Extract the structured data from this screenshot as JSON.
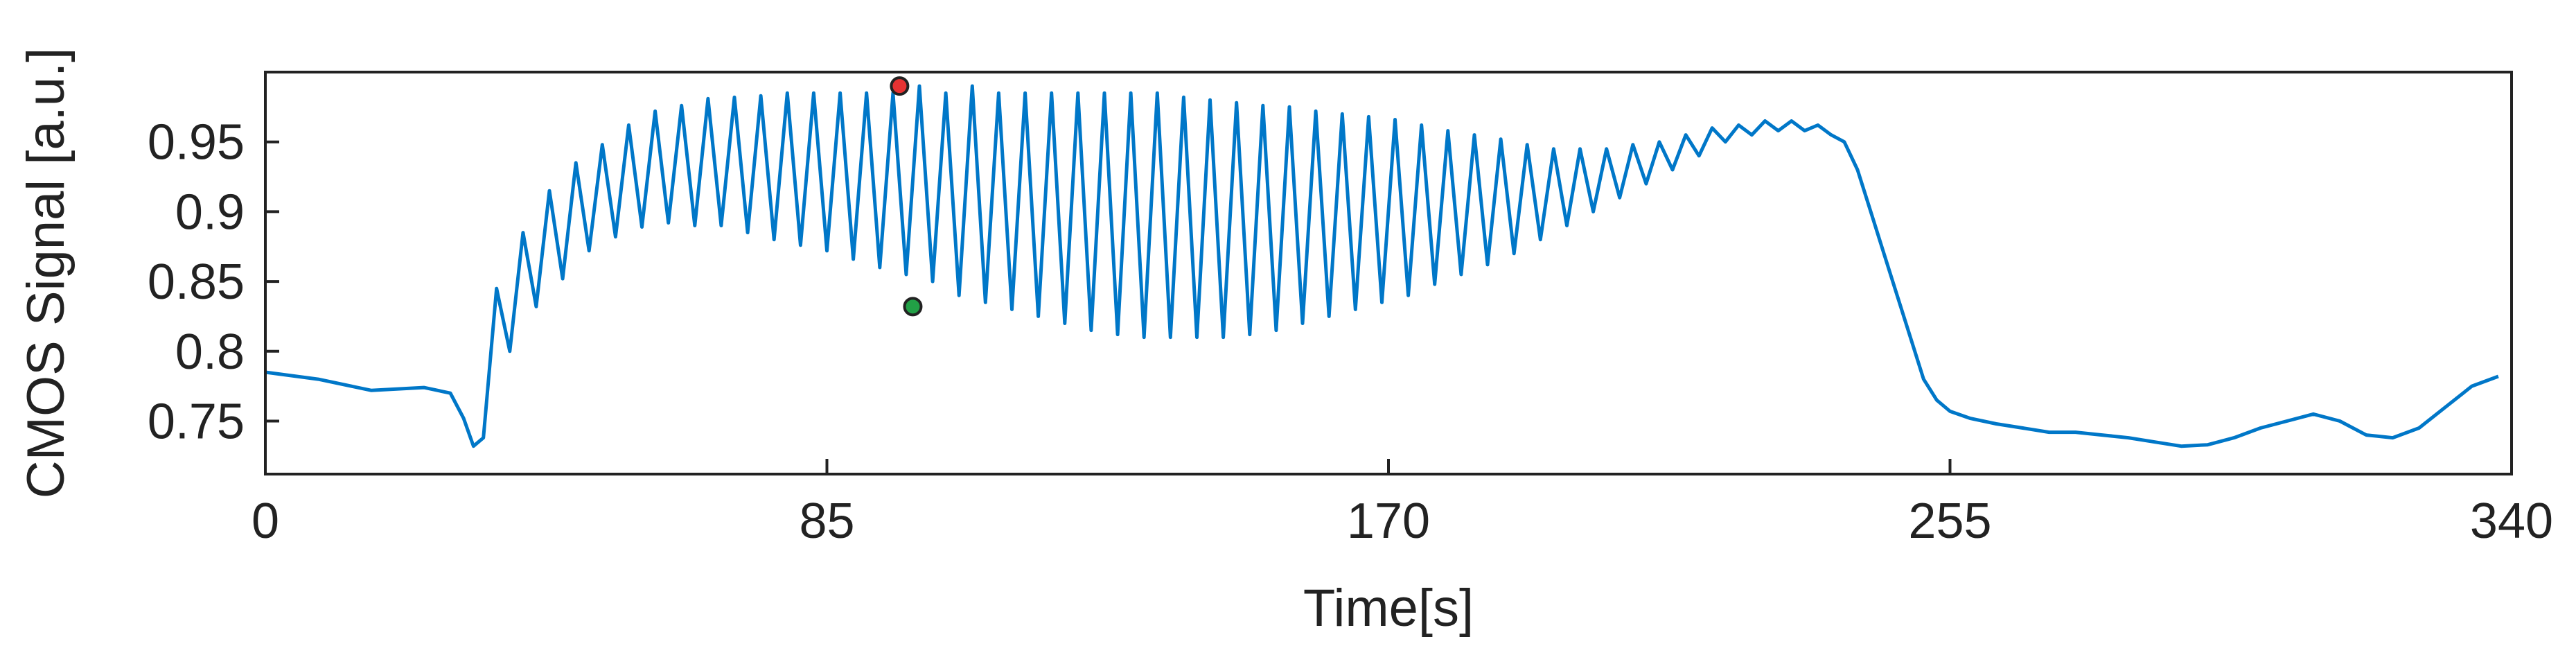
{
  "chart_data": {
    "type": "line",
    "title": "",
    "xlabel": "Time[s]",
    "ylabel": "CMOS Signal [a.u.]",
    "xlim": [
      0,
      340
    ],
    "ylim": [
      0.712,
      1.0
    ],
    "xticks": [
      0,
      85,
      170,
      255,
      340
    ],
    "yticks": [
      0.75,
      0.8,
      0.85,
      0.9,
      0.95
    ],
    "ytick_labels": [
      "0.75",
      "0.8",
      "0.85",
      "0.9",
      "0.95"
    ],
    "grid": false,
    "legend": "none",
    "series": [
      {
        "color": "#0077c8",
        "x": [
          0,
          8,
          16,
          24,
          28,
          30,
          31.5,
          33,
          35,
          37,
          39,
          41,
          43,
          45,
          47,
          49,
          51,
          53,
          55,
          57,
          59,
          61,
          63,
          65,
          67,
          69,
          71,
          73,
          75,
          77,
          79,
          81,
          83,
          85,
          87,
          89,
          91,
          93,
          95,
          97,
          99,
          101,
          103,
          105,
          107,
          109,
          111,
          113,
          115,
          117,
          119,
          121,
          123,
          125,
          127,
          129,
          131,
          133,
          135,
          137,
          139,
          141,
          143,
          145,
          147,
          149,
          151,
          153,
          155,
          157,
          159,
          161,
          163,
          165,
          167,
          169,
          171,
          173,
          175,
          177,
          179,
          181,
          183,
          185,
          187,
          189,
          191,
          193,
          195,
          197,
          199,
          201,
          203,
          205,
          207,
          209,
          211,
          213,
          215,
          217,
          219,
          221,
          223,
          225,
          227,
          229,
          231,
          233,
          235,
          237,
          239,
          241,
          243,
          245,
          247,
          249,
          251,
          253,
          255,
          258,
          262,
          266,
          270,
          274,
          278,
          282,
          286,
          290,
          294,
          298,
          302,
          306,
          310,
          314,
          318,
          322,
          326,
          330,
          334,
          338
        ],
        "y": [
          0.785,
          0.78,
          0.772,
          0.774,
          0.77,
          0.752,
          0.732,
          0.738,
          0.845,
          0.8,
          0.885,
          0.832,
          0.915,
          0.852,
          0.935,
          0.872,
          0.948,
          0.882,
          0.962,
          0.889,
          0.972,
          0.892,
          0.976,
          0.89,
          0.981,
          0.89,
          0.982,
          0.885,
          0.983,
          0.88,
          0.985,
          0.876,
          0.985,
          0.872,
          0.985,
          0.866,
          0.985,
          0.86,
          0.985,
          0.855,
          0.99,
          0.85,
          0.985,
          0.84,
          0.99,
          0.835,
          0.985,
          0.83,
          0.985,
          0.825,
          0.985,
          0.82,
          0.985,
          0.815,
          0.985,
          0.812,
          0.985,
          0.81,
          0.985,
          0.81,
          0.982,
          0.81,
          0.98,
          0.81,
          0.978,
          0.812,
          0.976,
          0.815,
          0.975,
          0.82,
          0.972,
          0.825,
          0.97,
          0.83,
          0.968,
          0.835,
          0.966,
          0.84,
          0.962,
          0.848,
          0.958,
          0.855,
          0.955,
          0.862,
          0.952,
          0.87,
          0.948,
          0.88,
          0.945,
          0.89,
          0.945,
          0.9,
          0.945,
          0.91,
          0.948,
          0.92,
          0.95,
          0.93,
          0.955,
          0.94,
          0.96,
          0.95,
          0.962,
          0.955,
          0.965,
          0.958,
          0.965,
          0.958,
          0.962,
          0.955,
          0.95,
          0.93,
          0.9,
          0.87,
          0.84,
          0.81,
          0.78,
          0.765,
          0.757,
          0.752,
          0.748,
          0.745,
          0.742,
          0.742,
          0.74,
          0.738,
          0.735,
          0.732,
          0.733,
          0.738,
          0.745,
          0.75,
          0.755,
          0.75,
          0.74,
          0.738,
          0.745,
          0.76,
          0.775,
          0.782
        ]
      }
    ],
    "markers": [
      {
        "x": 96,
        "y": 0.99,
        "color": "#e63232"
      },
      {
        "x": 98,
        "y": 0.832,
        "color": "#22a046"
      }
    ]
  }
}
